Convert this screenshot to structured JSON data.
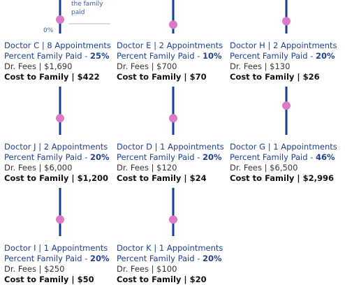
{
  "chart_data": {
    "type": "lollipop",
    "y_range": [
      0,
      100
    ],
    "annotation": "the family paid",
    "zero_tick": "0%",
    "colors": {
      "stem": "#143d8a",
      "dot": "#d97bc7",
      "guide": "#c8c8c8"
    },
    "doctors": [
      {
        "name": "Doctor C",
        "appointments": "8 Appointments",
        "percent_label": "25%",
        "percent": 25,
        "fees": "$1,690",
        "cost": "$422"
      },
      {
        "name": "Doctor E",
        "appointments": "2 Appointments",
        "percent_label": "10%",
        "percent": 10,
        "fees": "$700",
        "cost": "$70"
      },
      {
        "name": "Doctor H",
        "appointments": "2 Appointments",
        "percent_label": "20%",
        "percent": 20,
        "fees": "$130",
        "cost": "$26"
      },
      {
        "name": "Doctor J",
        "appointments": "2 Appointments",
        "percent_label": "20%",
        "percent": 20,
        "fees": "$6,000",
        "cost": "$1,200"
      },
      {
        "name": "Doctor D",
        "appointments": "1 Appointments",
        "percent_label": "20%",
        "percent": 20,
        "fees": "$120",
        "cost": "$24"
      },
      {
        "name": "Doctor G",
        "appointments": "1 Appointments",
        "percent_label": "46%",
        "percent": 46,
        "fees": "$6,500",
        "cost": "$2,996"
      },
      {
        "name": "Doctor I",
        "appointments": "1 Appointments",
        "percent_label": "20%",
        "percent": 20,
        "fees": "$250",
        "cost": "$50"
      },
      {
        "name": "Doctor K",
        "appointments": "1 Appointments",
        "percent_label": "20%",
        "percent": 20,
        "fees": "$100",
        "cost": "$20"
      }
    ],
    "labels": {
      "percent_prefix": "Percent Family Paid - ",
      "fees_prefix": "Dr. Fees |  ",
      "cost_prefix": "Cost to Family |  ",
      "separator": " | "
    }
  }
}
